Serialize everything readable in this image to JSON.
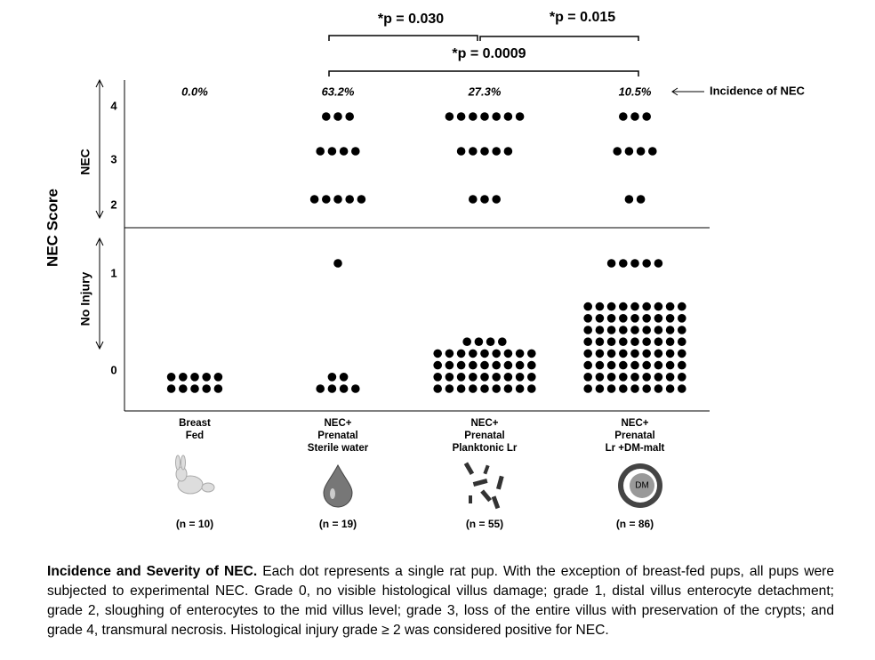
{
  "chart_data": {
    "type": "dot",
    "y_label": "NEC Score",
    "y_group_labels": [
      "NEC",
      "No Injury"
    ],
    "yticks": [
      0,
      1,
      2,
      3,
      4
    ],
    "categories": [
      [
        "Breast",
        "Fed"
      ],
      [
        "NEC+",
        "Prenatal",
        "Sterile water"
      ],
      [
        "NEC+",
        "Prenatal",
        "Planktonic Lr"
      ],
      [
        "NEC+",
        "Prenatal",
        "Lr +DM-malt"
      ]
    ],
    "n_labels": [
      "(n = 10)",
      "(n = 19)",
      "(n = 55)",
      "(n = 86)"
    ],
    "counts": [
      [
        10,
        0,
        0,
        0,
        0
      ],
      [
        6,
        1,
        5,
        4,
        3
      ],
      [
        40,
        0,
        3,
        5,
        7
      ],
      [
        72,
        5,
        2,
        4,
        3
      ]
    ],
    "color": "#000000",
    "incidence": {
      "values": [
        0.0,
        63.2,
        27.3,
        10.5
      ],
      "value_labels": [
        "0.0%",
        "63.2%",
        "27.3%",
        "10.5%"
      ]
    },
    "incidence_label": "Incidence of NEC",
    "annotations": [
      "*p = 0.030",
      "*p = 0.015",
      "*p = 0.0009"
    ]
  },
  "caption": {
    "title": "Incidence and Severity of NEC.",
    "text": " Each dot represents a single rat pup. With the exception of breast-fed pups, all pups were subjected to experimental NEC. Grade 0, no visible histological villus damage; grade 1, distal villus enterocyte detachment; grade 2, sloughing of enterocytes to the mid villus level; grade 3, loss of the entire villus with preservation of the crypts; and grade 4, transmural necrosis. Histological injury grade ≥ 2 was considered positive for NEC."
  }
}
